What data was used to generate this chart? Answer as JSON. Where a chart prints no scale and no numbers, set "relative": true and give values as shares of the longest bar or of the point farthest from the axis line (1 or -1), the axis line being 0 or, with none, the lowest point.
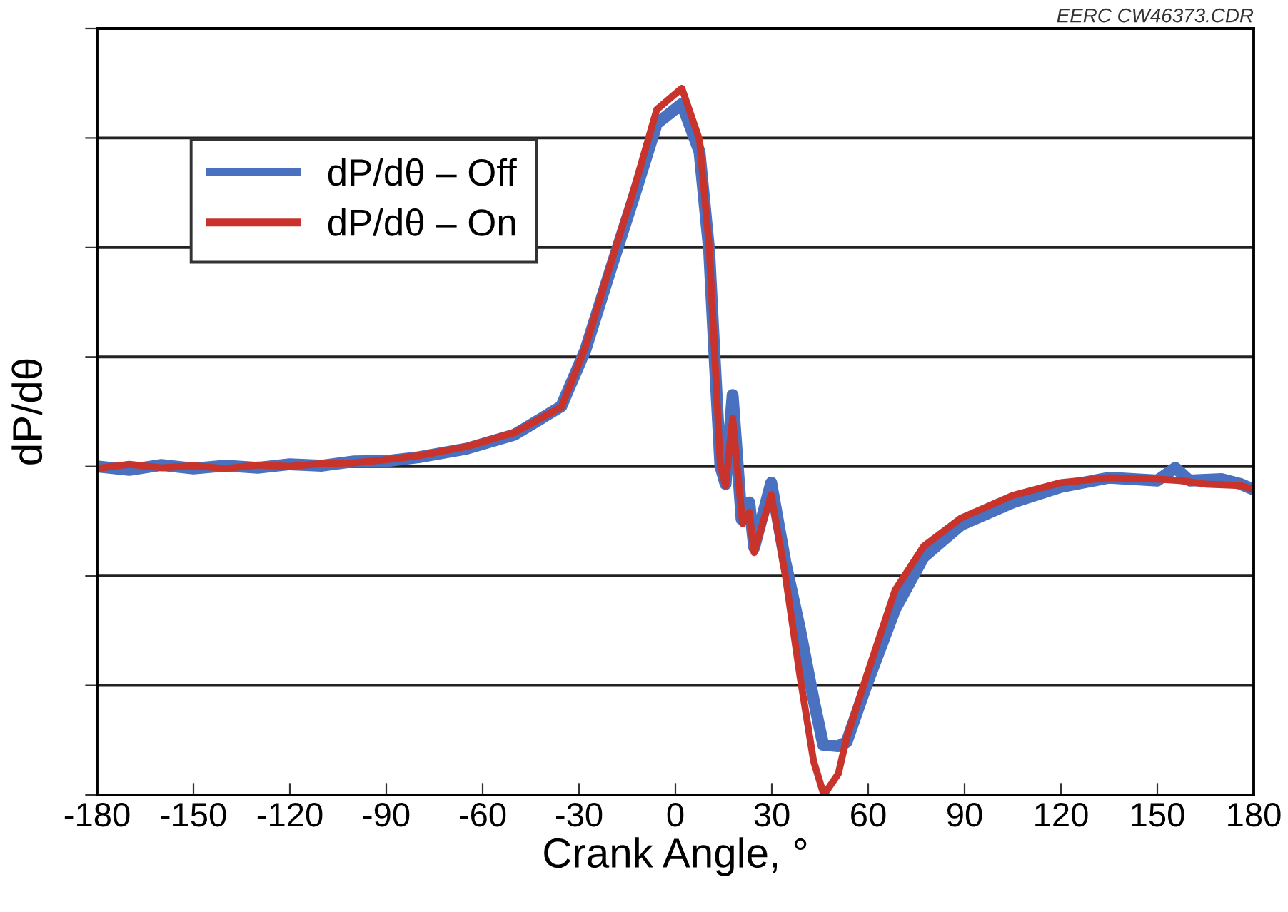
{
  "chart_data": {
    "type": "line",
    "relative": true,
    "xlabel": "Crank Angle, °",
    "ylabel": "dP/dθ",
    "xlim": [
      -180,
      180
    ],
    "xticks": [
      -180,
      -150,
      -120,
      -90,
      -60,
      -30,
      0,
      30,
      60,
      90,
      120,
      150,
      180
    ],
    "grid": "y",
    "legend": "top left",
    "line_style": "solid",
    "marker": "none",
    "annotations": [
      "EERC CW46373.CDR"
    ],
    "series": [
      {
        "name": "dP/dθ – Off",
        "color": "#4a70c0",
        "x": [
          -180,
          -170,
          -160,
          -150,
          -140,
          -130,
          -120,
          -110,
          -100,
          -89,
          -80,
          -65,
          -50,
          -35.5,
          -28,
          -20.4,
          -13,
          -5.8,
          2,
          7.5,
          10.5,
          12.3,
          14,
          15.6,
          17.8,
          20.6,
          23,
          24.5,
          29.8,
          34.2,
          38.7,
          43,
          46,
          50.7,
          53.3,
          59.6,
          68.4,
          77.3,
          88.9,
          105,
          120,
          135,
          150,
          155.6,
          160,
          170,
          176,
          180
        ],
        "values": [
          0.465,
          0.46,
          0.467,
          0.462,
          0.466,
          0.463,
          0.468,
          0.466,
          0.472,
          0.473,
          0.478,
          0.49,
          0.51,
          0.55,
          0.63,
          0.74,
          0.845,
          0.95,
          0.978,
          0.91,
          0.77,
          0.61,
          0.465,
          0.44,
          0.566,
          0.39,
          0.414,
          0.35,
          0.442,
          0.33,
          0.236,
          0.135,
          0.071,
          0.069,
          0.075,
          0.157,
          0.263,
          0.337,
          0.382,
          0.414,
          0.436,
          0.449,
          0.445,
          0.463,
          0.445,
          0.447,
          0.44,
          0.432
        ]
      },
      {
        "name": "dP/dθ – On",
        "color": "#c8332b",
        "x": [
          -180,
          -170,
          -160,
          -150,
          -140,
          -130,
          -120,
          -110,
          -100,
          -89,
          -80,
          -65,
          -50,
          -35.5,
          -28,
          -20.4,
          -13,
          -5.8,
          2,
          7.5,
          10.5,
          12.3,
          14,
          15.6,
          17.8,
          20.9,
          23,
          24.5,
          29.8,
          34.2,
          38.7,
          43,
          46.2,
          50.7,
          53.3,
          59.6,
          68.4,
          77.3,
          88.9,
          105,
          120,
          135,
          150,
          157,
          165,
          176,
          180
        ],
        "values": [
          0.462,
          0.468,
          0.463,
          0.466,
          0.462,
          0.467,
          0.465,
          0.469,
          0.47,
          0.475,
          0.48,
          0.493,
          0.513,
          0.549,
          0.634,
          0.748,
          0.856,
          0.97,
          1.0,
          0.927,
          0.776,
          0.616,
          0.465,
          0.438,
          0.533,
          0.384,
          0.4,
          0.343,
          0.425,
          0.311,
          0.17,
          0.048,
          0.0,
          0.03,
          0.081,
          0.17,
          0.29,
          0.352,
          0.392,
          0.424,
          0.442,
          0.449,
          0.447,
          0.445,
          0.44,
          0.438,
          0.432
        ]
      }
    ]
  }
}
